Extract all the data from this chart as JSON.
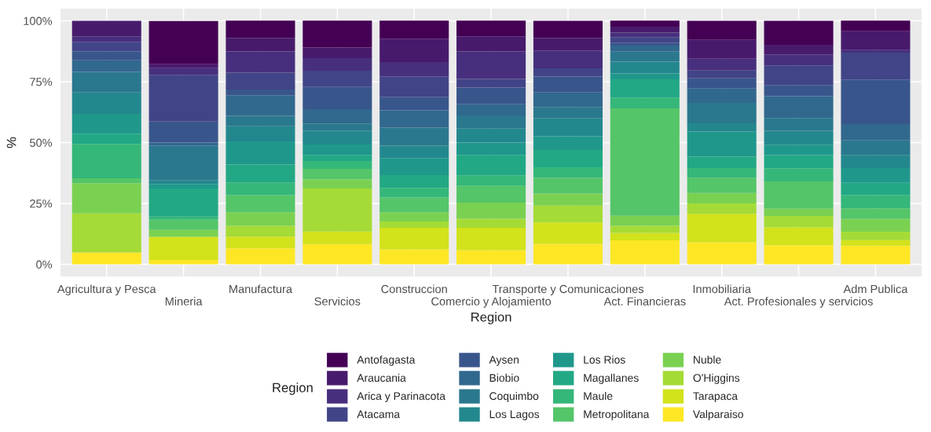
{
  "chart_data": {
    "type": "bar",
    "stacked": true,
    "xlabel": "Region",
    "ylabel": "%",
    "legend_title": "Region",
    "legend": "bottom",
    "grid": true,
    "categories": [
      "Agricultura y Pesca",
      "Mineria",
      "Manufactura",
      "Servicios",
      "Construccion",
      "Comercio y Alojamiento",
      "Transporte y Comunicaciones",
      "Act. Financieras",
      "Inmobiliaria",
      "Act. Profesionales y servicios",
      "Adm Publica"
    ],
    "ylim": [
      -5,
      105
    ],
    "yticks": [
      {
        "value": 0,
        "label": "0%"
      },
      {
        "value": 25,
        "label": "25%"
      },
      {
        "value": 50,
        "label": "50%"
      },
      {
        "value": 75,
        "label": "75%"
      },
      {
        "value": 100,
        "label": "100%"
      }
    ],
    "series": [
      {
        "name": "Valparaiso",
        "color": "#fde725",
        "values": [
          4.8,
          1.8,
          6.5,
          8.3,
          6.1,
          5.8,
          8.4,
          9.8,
          9.0,
          7.8,
          7.7
        ]
      },
      {
        "name": "Tarapaca",
        "color": "#d2e21b",
        "values": [
          0,
          9.5,
          4.9,
          5.2,
          8.9,
          9.2,
          8.8,
          3.1,
          11.7,
          7.4,
          2.2
        ]
      },
      {
        "name": "O'Higgins",
        "color": "#a5db36",
        "values": [
          16.1,
          0,
          4.4,
          17.6,
          2.6,
          3.7,
          6.9,
          2.9,
          4.3,
          4.6,
          3.5
        ]
      },
      {
        "name": "Nuble",
        "color": "#7ad151",
        "values": [
          12.4,
          2.8,
          5.6,
          3.8,
          3.8,
          6.6,
          4.9,
          4.1,
          4.3,
          3.0,
          5.2
        ]
      },
      {
        "name": "Metropolitana",
        "color": "#54c568",
        "values": [
          2.0,
          4.2,
          7.0,
          4.3,
          6.0,
          6.9,
          6.5,
          44.1,
          6.3,
          11.2,
          4.4
        ]
      },
      {
        "name": "Maule",
        "color": "#35b779",
        "values": [
          14.1,
          1.3,
          5.2,
          3.2,
          4.0,
          4.3,
          4.3,
          4.5,
          3.9,
          5.4,
          5.4
        ]
      },
      {
        "name": "Magallanes",
        "color": "#22a884",
        "values": [
          4.2,
          11.5,
          7.4,
          2.5,
          5.2,
          8.4,
          7.1,
          7.5,
          4.7,
          5.4,
          5.1
        ]
      },
      {
        "name": "Los Rios",
        "color": "#1f988b",
        "values": [
          8.2,
          1.9,
          9.5,
          4.3,
          7.0,
          5.1,
          5.7,
          2.4,
          10.3,
          4.3,
          6.0
        ]
      },
      {
        "name": "Los Lagos",
        "color": "#23888e",
        "values": [
          8.8,
          1.4,
          6.2,
          5.7,
          5.1,
          5.7,
          7.3,
          4.8,
          3.4,
          5.7,
          5.4
        ]
      },
      {
        "name": "Coquimbo",
        "color": "#2a788e",
        "values": [
          8.4,
          14.2,
          4.3,
          2.9,
          7.4,
          5.4,
          4.7,
          4.1,
          8.4,
          5.3,
          6.0
        ]
      },
      {
        "name": "Biobio",
        "color": "#31688e",
        "values": [
          4.8,
          1.4,
          8.4,
          5.9,
          7.1,
          4.6,
          6.0,
          2.5,
          5.9,
          8.9,
          6.7
        ]
      },
      {
        "name": "Aysen",
        "color": "#39568c",
        "values": [
          3.7,
          8.6,
          2.4,
          9.1,
          5.6,
          6.9,
          6.5,
          1.1,
          4.2,
          4.6,
          18.3
        ]
      },
      {
        "name": "Atacama",
        "color": "#414487",
        "values": [
          3.9,
          19.2,
          6.9,
          6.7,
          8.4,
          3.5,
          3.4,
          2.4,
          3.2,
          8.1,
          11.0
        ]
      },
      {
        "name": "Arica y Parinacota",
        "color": "#472f7d",
        "values": [
          2.2,
          2.8,
          8.7,
          5.2,
          5.9,
          11.3,
          7.3,
          1.9,
          4.8,
          4.5,
          1.1
        ]
      },
      {
        "name": "Araucania",
        "color": "#481a6c",
        "values": [
          6.4,
          1.6,
          5.6,
          4.3,
          9.6,
          6.2,
          5.1,
          2.4,
          7.8,
          4.0,
          7.7
        ]
      },
      {
        "name": "Antofagasta",
        "color": "#440154",
        "values": [
          0,
          17.7,
          7.1,
          11.1,
          7.4,
          6.5,
          7.1,
          2.5,
          7.8,
          9.8,
          4.4
        ]
      }
    ]
  }
}
